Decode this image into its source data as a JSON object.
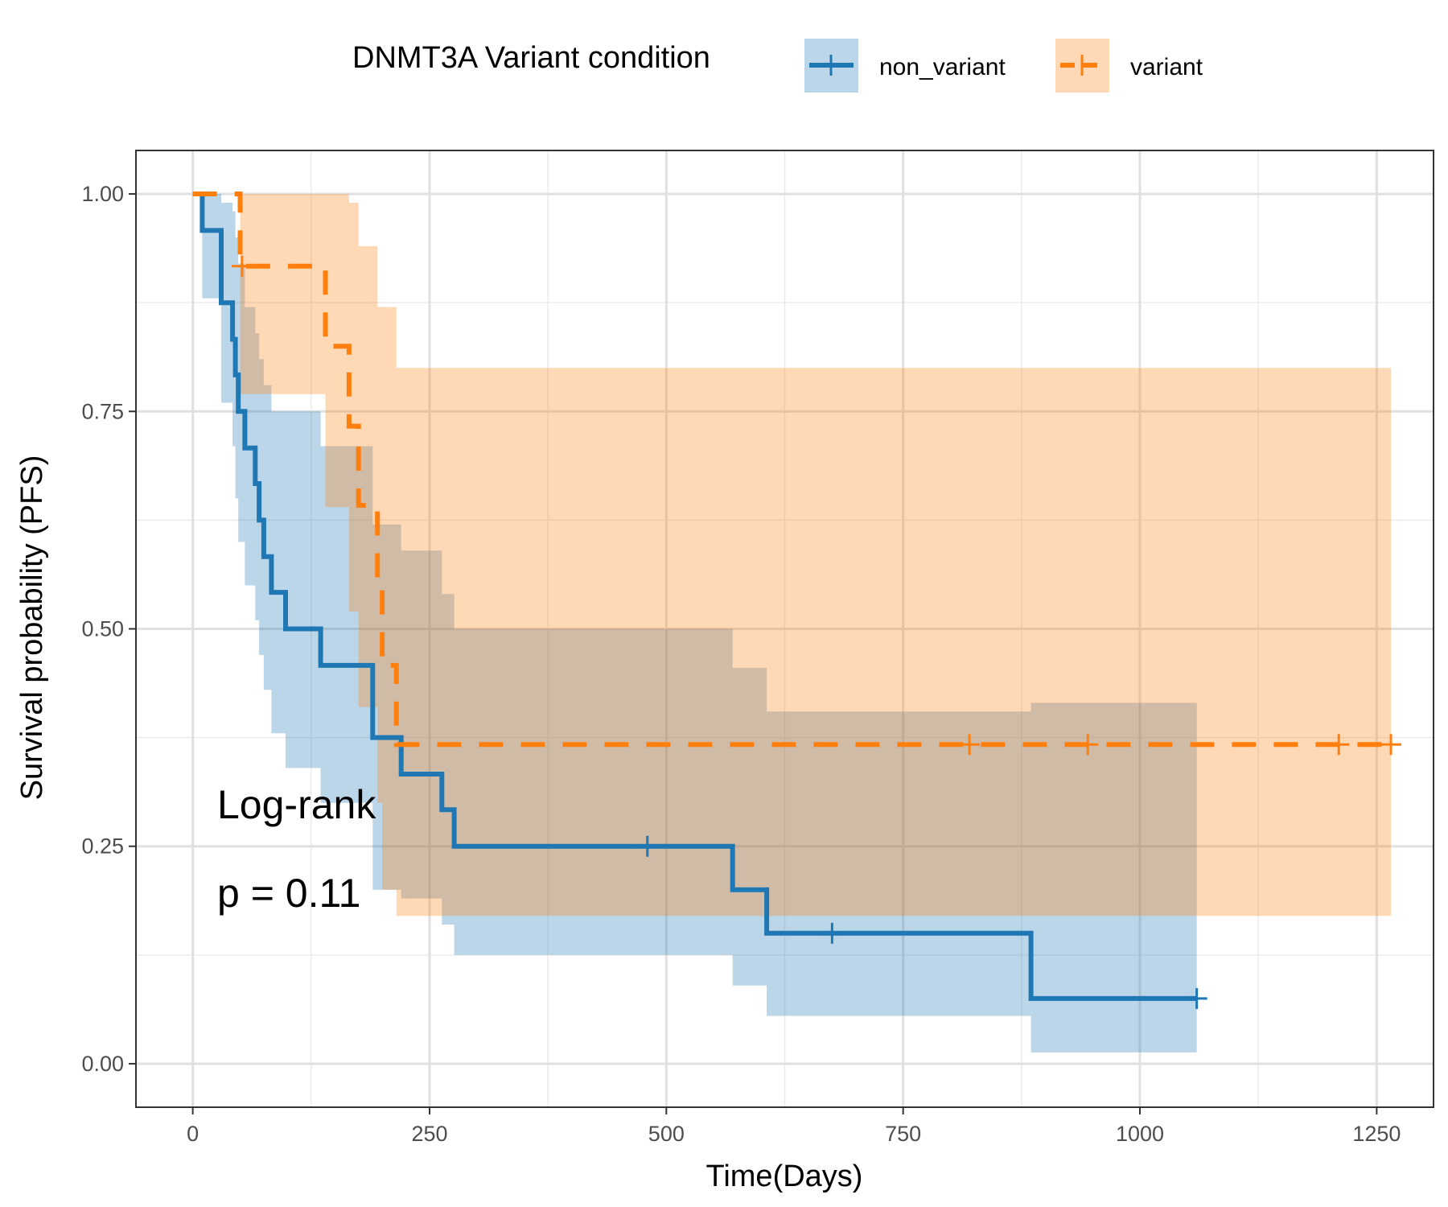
{
  "chart_data": {
    "type": "line",
    "subtype": "kaplan-meier",
    "xlabel": "Time(Days)",
    "ylabel": "Survival probability (PFS)",
    "xlim": [
      -60,
      1310
    ],
    "ylim": [
      -0.05,
      1.05
    ],
    "xticks": [
      0,
      250,
      500,
      750,
      1000,
      1250
    ],
    "yticks": [
      0.0,
      0.25,
      0.5,
      0.75,
      1.0
    ],
    "xtick_labels": [
      "0",
      "250",
      "500",
      "750",
      "1000",
      "1250"
    ],
    "ytick_labels": [
      "0.00",
      "0.25",
      "0.50",
      "0.75",
      "1.00"
    ],
    "grid": true,
    "legend": {
      "title": "DNMT3A Variant condition",
      "position": "top"
    },
    "annotation": {
      "line1": "Log-rank",
      "line2": "p = 0.11"
    },
    "series": [
      {
        "name": "non_variant",
        "color": "#1f77b4",
        "dash": "solid",
        "steps": [
          [
            0,
            1.0
          ],
          [
            10,
            0.958
          ],
          [
            30,
            0.875
          ],
          [
            42,
            0.833
          ],
          [
            45,
            0.792
          ],
          [
            48,
            0.75
          ],
          [
            55,
            0.708
          ],
          [
            66,
            0.667
          ],
          [
            70,
            0.625
          ],
          [
            75,
            0.583
          ],
          [
            83,
            0.542
          ],
          [
            98,
            0.5
          ],
          [
            135,
            0.458
          ],
          [
            190,
            0.375
          ],
          [
            220,
            0.333
          ],
          [
            263,
            0.292
          ],
          [
            276,
            0.25
          ],
          [
            570,
            0.2
          ],
          [
            606,
            0.15
          ],
          [
            885,
            0.075
          ]
        ],
        "end": 1060,
        "ci": [
          [
            0,
            1.0,
            1.0
          ],
          [
            10,
            0.88,
            1.0
          ],
          [
            30,
            0.76,
            0.99
          ],
          [
            42,
            0.71,
            0.98
          ],
          [
            45,
            0.65,
            0.95
          ],
          [
            48,
            0.6,
            0.92
          ],
          [
            55,
            0.55,
            0.87
          ],
          [
            66,
            0.51,
            0.84
          ],
          [
            70,
            0.47,
            0.81
          ],
          [
            75,
            0.43,
            0.78
          ],
          [
            83,
            0.38,
            0.75
          ],
          [
            98,
            0.34,
            0.75
          ],
          [
            135,
            0.3,
            0.71
          ],
          [
            190,
            0.2,
            0.62
          ],
          [
            220,
            0.19,
            0.59
          ],
          [
            263,
            0.16,
            0.54
          ],
          [
            276,
            0.125,
            0.5
          ],
          [
            570,
            0.09,
            0.455
          ],
          [
            606,
            0.055,
            0.405
          ],
          [
            885,
            0.013,
            0.415
          ]
        ],
        "censors": [
          [
            480,
            0.25
          ],
          [
            675,
            0.15
          ],
          [
            1060,
            0.075
          ]
        ]
      },
      {
        "name": "variant",
        "color": "#ff7f0e",
        "dash": "dashed",
        "steps": [
          [
            0,
            1.0
          ],
          [
            50,
            0.917
          ],
          [
            140,
            0.825
          ],
          [
            165,
            0.733
          ],
          [
            175,
            0.642
          ],
          [
            195,
            0.55
          ],
          [
            200,
            0.458
          ],
          [
            215,
            0.367
          ]
        ],
        "end": 1265,
        "ci": [
          [
            0,
            1.0,
            1.0
          ],
          [
            50,
            0.77,
            1.0
          ],
          [
            140,
            0.64,
            1.0
          ],
          [
            165,
            0.52,
            0.99
          ],
          [
            175,
            0.41,
            0.94
          ],
          [
            195,
            0.3,
            0.87
          ],
          [
            200,
            0.2,
            0.87
          ],
          [
            215,
            0.17,
            0.8
          ]
        ],
        "censors": [
          [
            52,
            0.917
          ],
          [
            820,
            0.367
          ],
          [
            945,
            0.367
          ],
          [
            1210,
            0.367
          ],
          [
            1265,
            0.367
          ]
        ]
      }
    ]
  }
}
